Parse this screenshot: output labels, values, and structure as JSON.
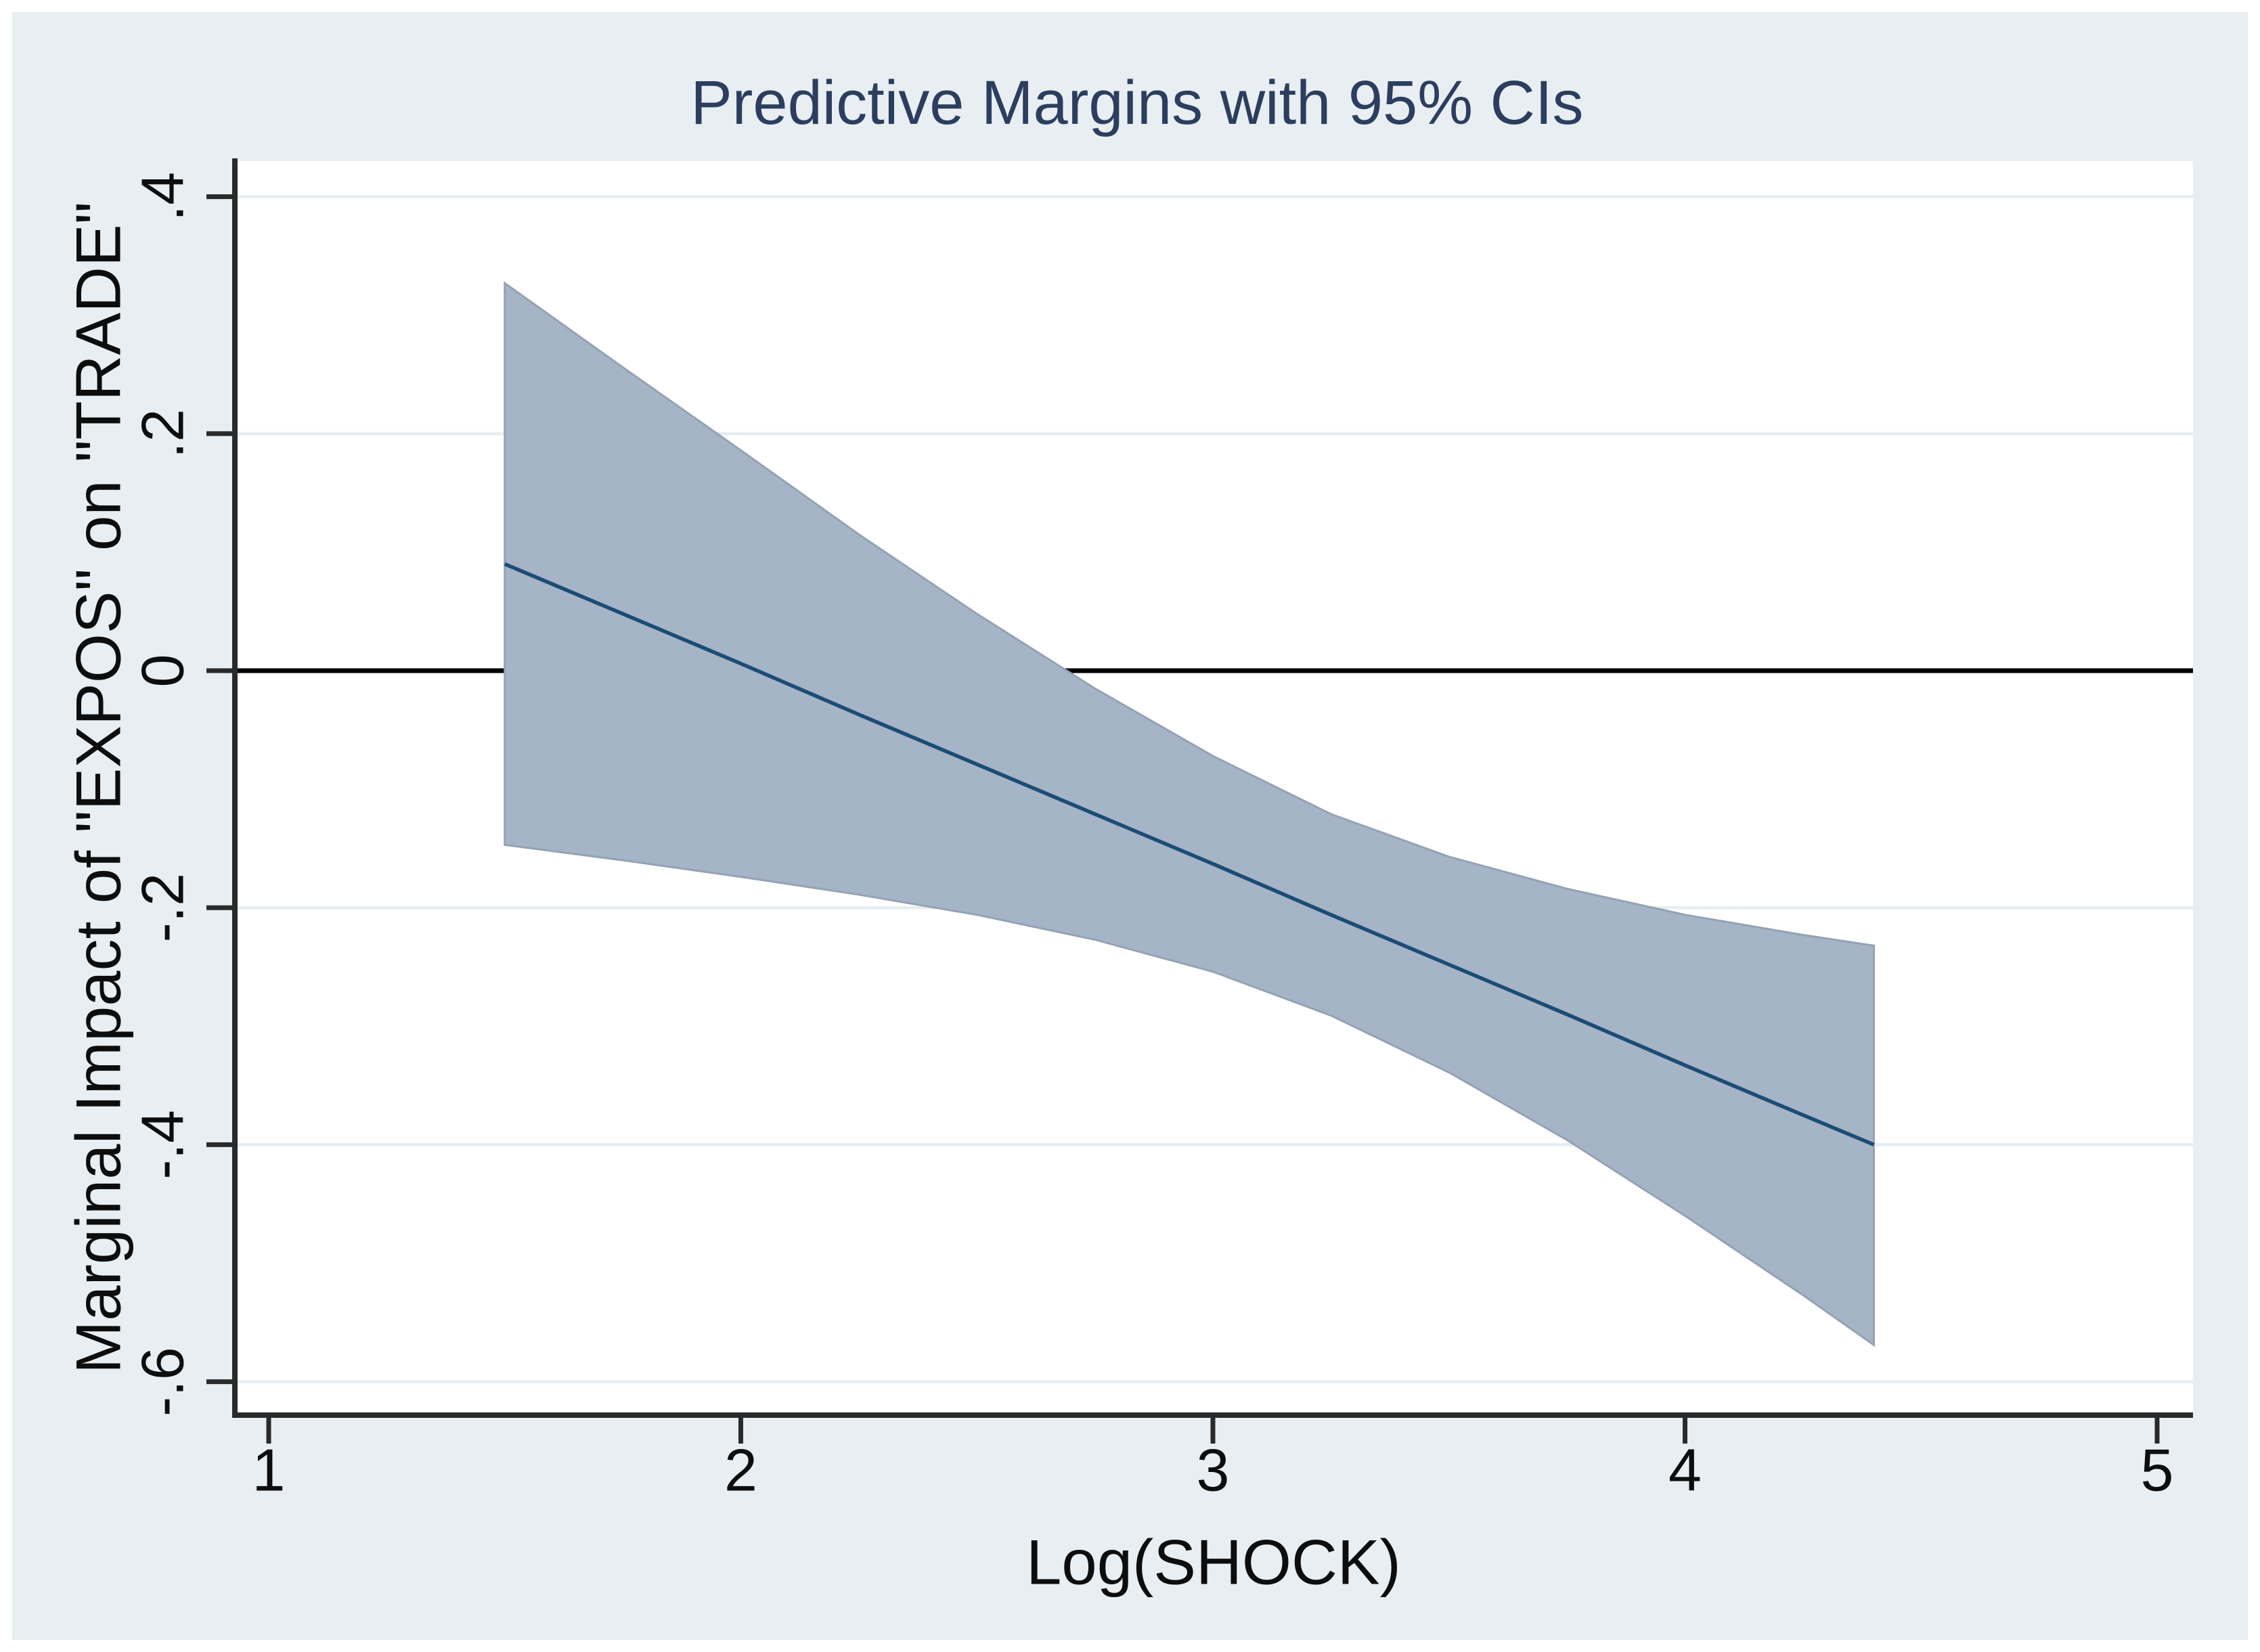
{
  "figure": {
    "title": "Predictive Margins with 95% CIs",
    "x_axis": {
      "label": "Log(SHOCK)"
    },
    "y_axis": {
      "label": "Marginal Impact of \"EXPOS\" on \"TRADE\""
    },
    "colors": {
      "canvas_background": "#e8eef2",
      "plot_background": "#ffffff",
      "gridline": "#e7edf0",
      "axis_line": "#2a2a2a",
      "zero_line": "#000000",
      "ci_band_fill": "#a6b4c7",
      "ci_band_edge": "#94a3b3",
      "margin_line": "#1b4c74",
      "title_text": "#2b3e5f",
      "tick_text": "#0d0d0d"
    }
  },
  "chart_data": {
    "type": "line",
    "title": "Predictive Margins with 95% CIs",
    "xlabel": "Log(SHOCK)",
    "ylabel": "Marginal Impact of \"EXPOS\" on \"TRADE\"",
    "x": [
      1.5,
      1.75,
      2.0,
      2.25,
      2.5,
      2.75,
      3.0,
      3.25,
      3.5,
      3.75,
      4.0,
      4.25,
      4.4
    ],
    "series": [
      {
        "name": "Predictive margin",
        "values": [
          0.09,
          0.048,
          0.006,
          -0.037,
          -0.079,
          -0.121,
          -0.163,
          -0.206,
          -0.248,
          -0.29,
          -0.333,
          -0.375,
          -0.4
        ]
      },
      {
        "name": "95% CI upper",
        "values": [
          0.327,
          0.256,
          0.186,
          0.115,
          0.048,
          -0.015,
          -0.072,
          -0.121,
          -0.157,
          -0.184,
          -0.206,
          -0.223,
          -0.232
        ]
      },
      {
        "name": "95% CI lower",
        "values": [
          -0.147,
          -0.16,
          -0.174,
          -0.189,
          -0.206,
          -0.227,
          -0.254,
          -0.291,
          -0.339,
          -0.396,
          -0.46,
          -0.527,
          -0.569
        ]
      }
    ],
    "band": {
      "upper_series": "95% CI upper",
      "lower_series": "95% CI lower",
      "meaning": "95% confidence interval"
    },
    "x_ticks": [
      1,
      2,
      3,
      4,
      5
    ],
    "x_tick_labels": [
      "1",
      "2",
      "3",
      "4",
      "5"
    ],
    "y_ticks": [
      0.4,
      0.2,
      0,
      -0.2,
      -0.4,
      -0.6
    ],
    "y_tick_labels": [
      ".4",
      ".2",
      "0",
      "-.2",
      "-.4",
      "-.6"
    ],
    "xlim": [
      0.93,
      5.08
    ],
    "ylim": [
      -0.628,
      0.43
    ],
    "reference_line_y": 0,
    "grid": "horizontal",
    "legend_position": "none"
  }
}
